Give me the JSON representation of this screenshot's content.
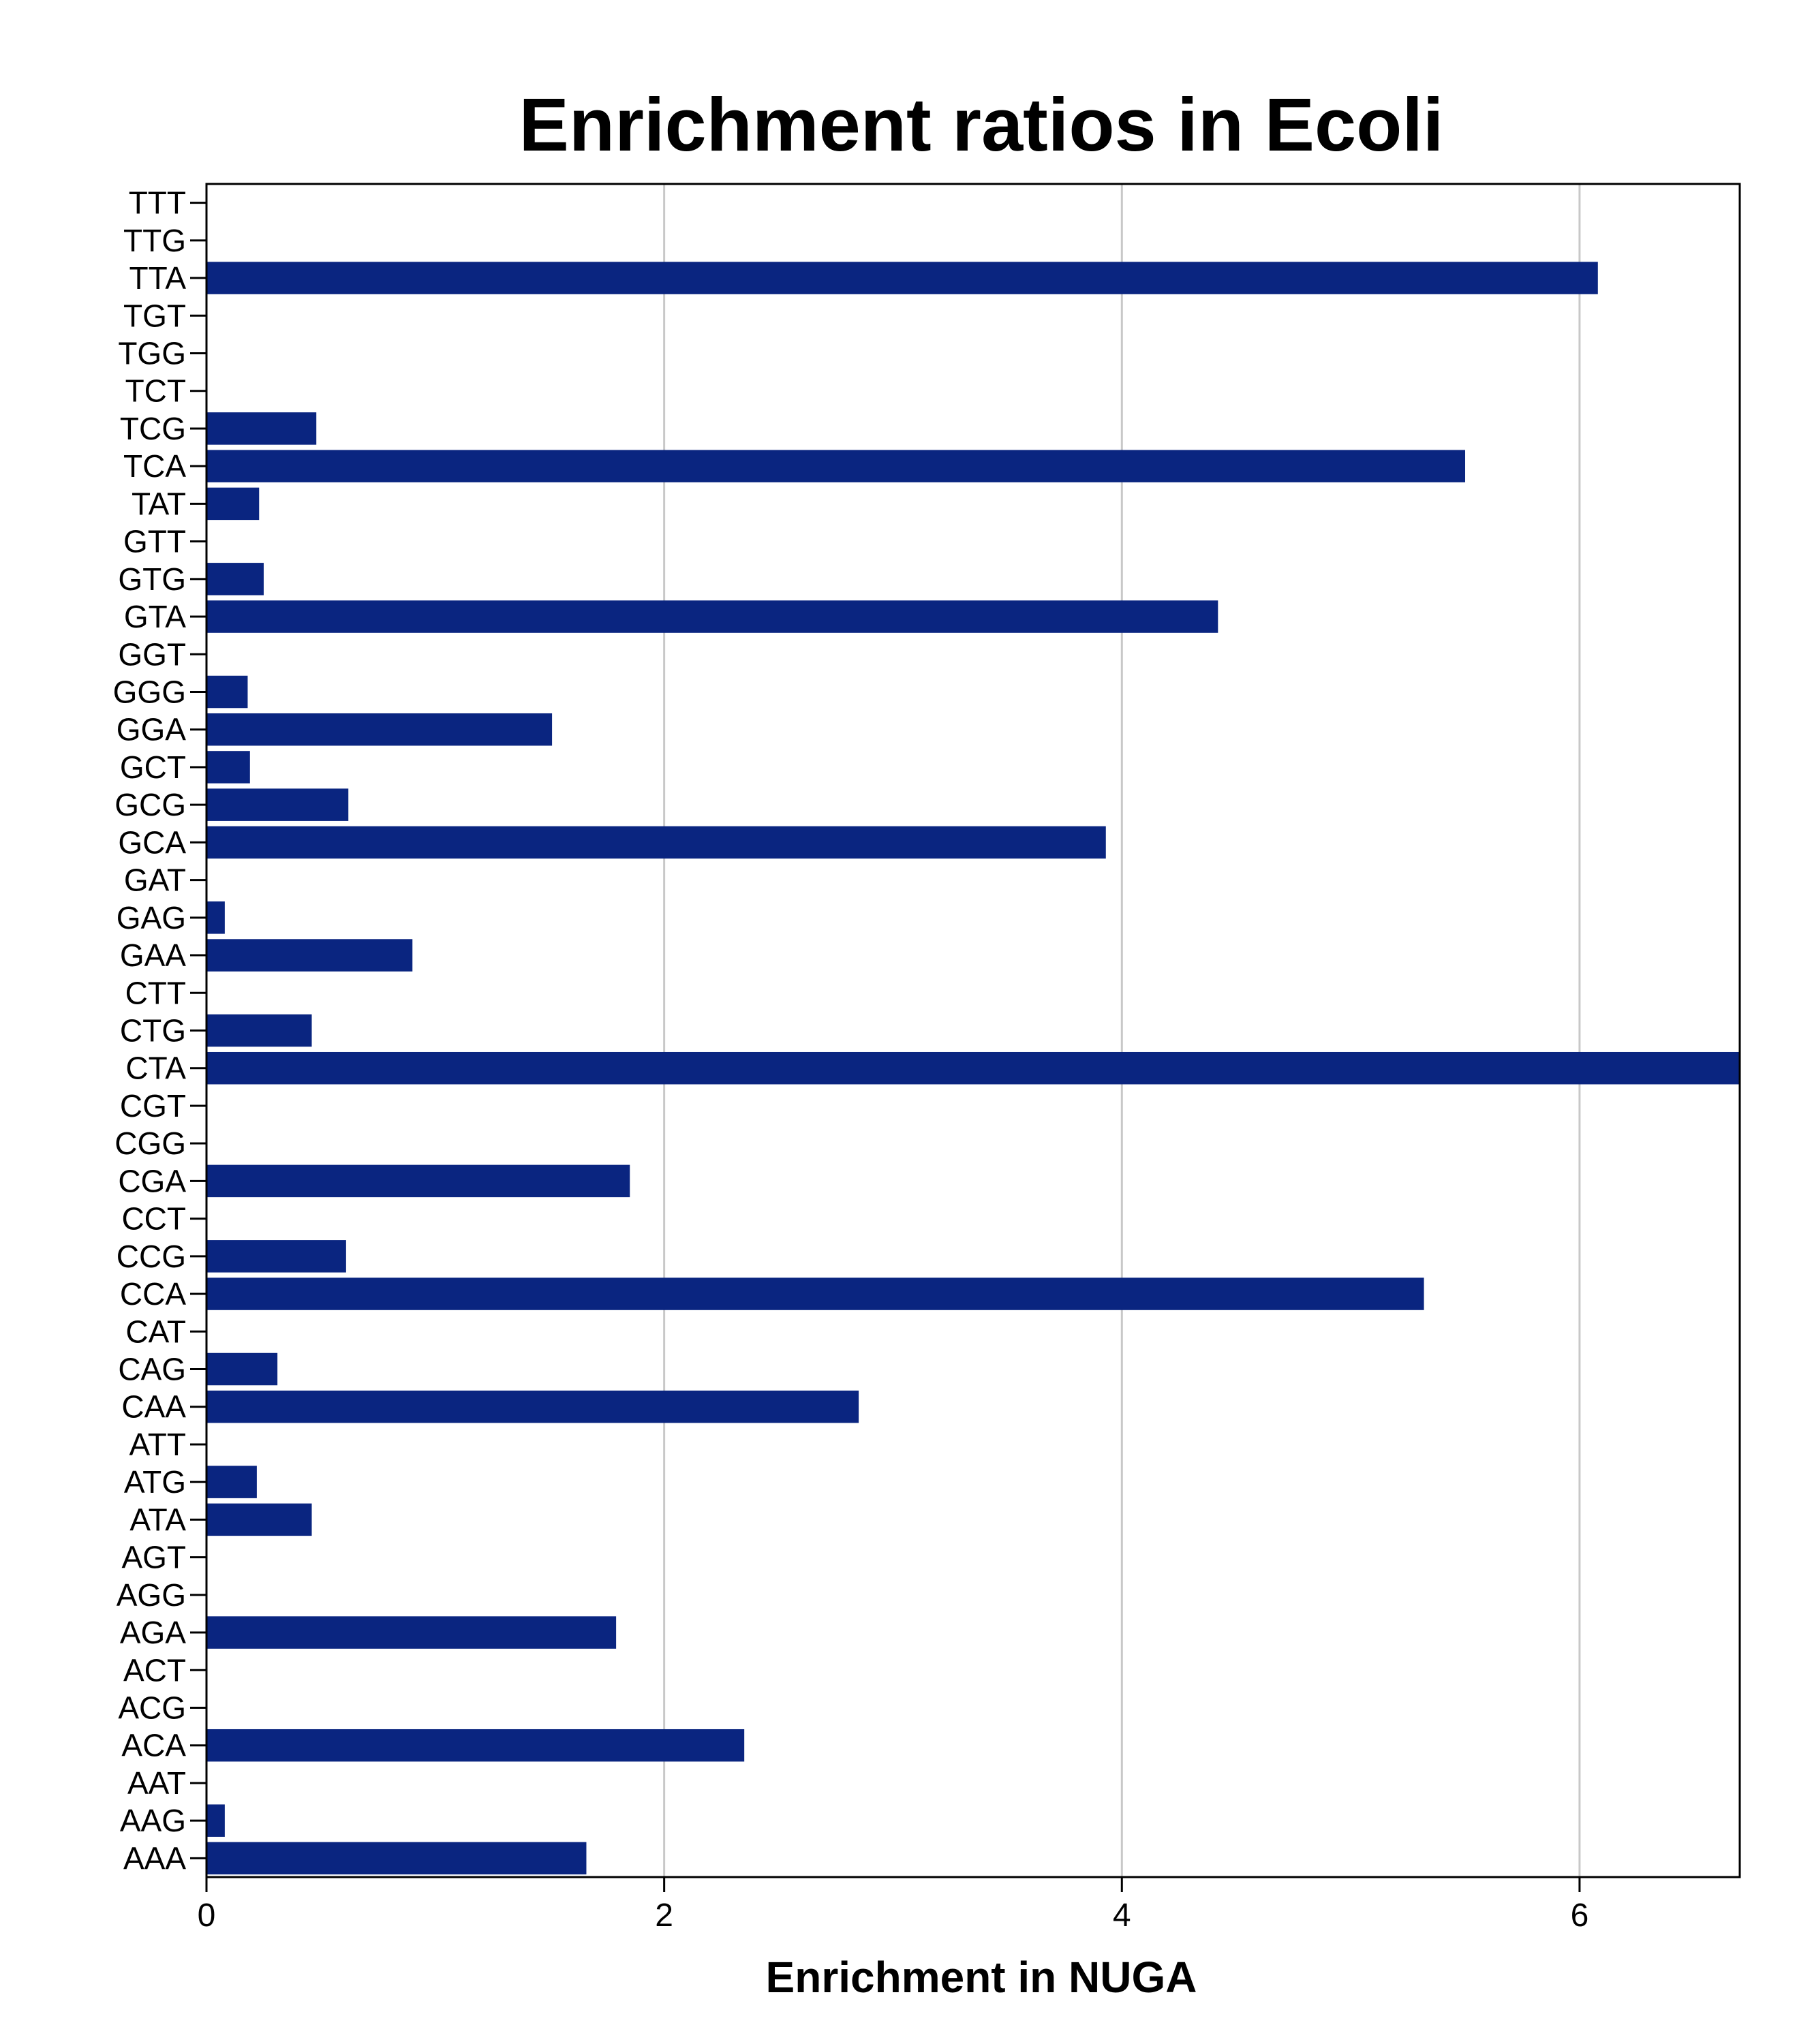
{
  "chart_data": {
    "type": "bar",
    "orientation": "horizontal",
    "title": "Enrichment ratios in Ecoli",
    "xlabel": "Enrichment in NUGA",
    "ylabel": "",
    "xlim": [
      0,
      6.7
    ],
    "xticks": [
      "0",
      "2",
      "4",
      "6"
    ],
    "xtick_values": [
      0,
      2,
      4,
      6
    ],
    "grid": "vertical",
    "bar_color": "#0a2580",
    "categories": [
      "TTT",
      "TTG",
      "TTA",
      "TGT",
      "TGG",
      "TCT",
      "TCG",
      "TCA",
      "TAT",
      "GTT",
      "GTG",
      "GTA",
      "GGT",
      "GGG",
      "GGA",
      "GCT",
      "GCG",
      "GCA",
      "GAT",
      "GAG",
      "GAA",
      "CTT",
      "CTG",
      "CTA",
      "CGT",
      "CGG",
      "CGA",
      "CCT",
      "CCG",
      "CCA",
      "CAT",
      "CAG",
      "CAA",
      "ATT",
      "ATG",
      "ATA",
      "AGT",
      "AGG",
      "AGA",
      "ACT",
      "ACG",
      "ACA",
      "AAT",
      "AAG",
      "AAA"
    ],
    "values": [
      0,
      0,
      6.08,
      0,
      0,
      0,
      0.48,
      5.5,
      0.23,
      0,
      0.25,
      4.42,
      0,
      0.18,
      1.51,
      0.19,
      0.62,
      3.93,
      0,
      0.08,
      0.9,
      0,
      0.46,
      6.7,
      0,
      0,
      1.85,
      0,
      0.61,
      5.32,
      0,
      0.31,
      2.85,
      0,
      0.22,
      0.46,
      0,
      0,
      1.79,
      0,
      0,
      2.35,
      0,
      0.08,
      1.66
    ]
  }
}
